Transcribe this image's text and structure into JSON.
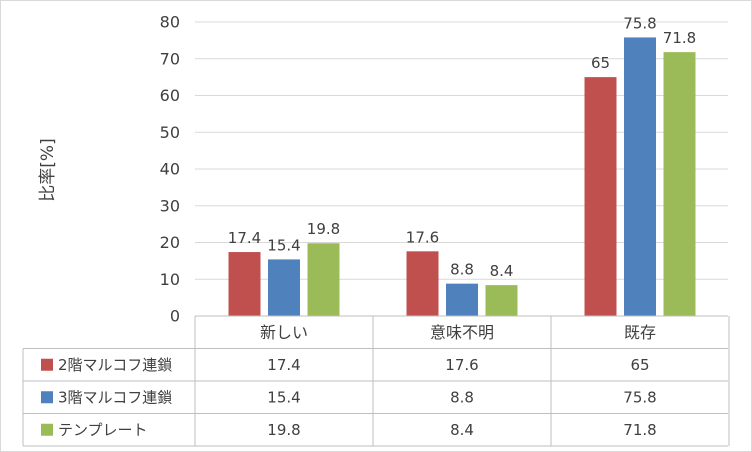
{
  "chart_data": {
    "type": "bar",
    "title": "",
    "xlabel": "",
    "ylabel": "比率[%]",
    "ylim": [
      0,
      80
    ],
    "ytick_step": 10,
    "grid": true,
    "legend": "data-table",
    "categories": [
      "新しい",
      "意味不明",
      "既存"
    ],
    "series": [
      {
        "name": "2階マルコフ連鎖",
        "color": "#C0504D",
        "values": [
          17.4,
          17.6,
          65
        ]
      },
      {
        "name": "3階マルコフ連鎖",
        "color": "#4F81BD",
        "values": [
          15.4,
          8.8,
          75.8
        ]
      },
      {
        "name": "テンプレート",
        "color": "#9BBB59",
        "values": [
          19.8,
          8.4,
          71.8
        ]
      }
    ]
  }
}
